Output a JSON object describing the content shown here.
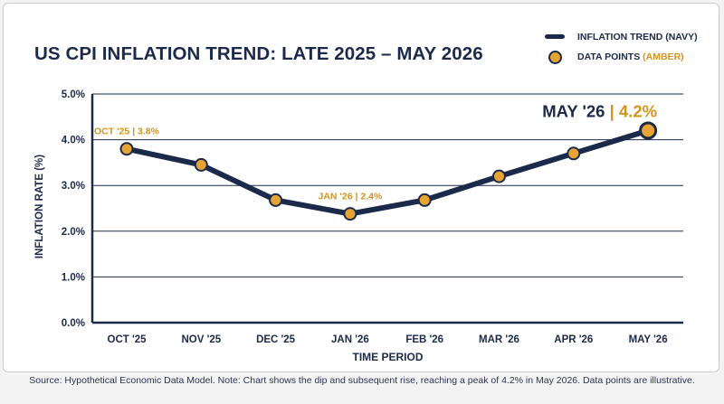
{
  "chart_data": {
    "type": "line",
    "title": "US CPI INFLATION TREND: LATE 2025 – MAY 2026",
    "xlabel": "TIME PERIOD",
    "ylabel": "INFLATION RATE (%)",
    "categories": [
      "OCT '25",
      "NOV '25",
      "DEC '25",
      "JAN '26",
      "FEB '26",
      "MAR '26",
      "APR '26",
      "MAY '26"
    ],
    "series": [
      {
        "name": "INFLATION TREND (NAVY)",
        "values": [
          3.8,
          3.45,
          2.68,
          2.38,
          2.68,
          3.2,
          3.7,
          4.2
        ]
      }
    ],
    "ylim": [
      0,
      5
    ],
    "yticks": [
      "0.0%",
      "1.0%",
      "2.0%",
      "3.0%",
      "4.0%",
      "5.0%"
    ],
    "grid": true,
    "legend": {
      "line_label": "INFLATION TREND (NAVY)",
      "points_label": "DATA POINTS",
      "points_suffix": "(AMBER)",
      "placement": "top-right"
    },
    "annotations": [
      {
        "index": 0,
        "text": "OCT '25 | 3.8%"
      },
      {
        "index": 3,
        "text": "JAN '26 | 2.4%"
      }
    ],
    "peak_annotation": {
      "index": 7,
      "label": "MAY '26",
      "separator": "|",
      "value": "4.2%"
    },
    "colors": {
      "line": "#1b2a4a",
      "points": "#e6a532",
      "accent": "#d4941f",
      "grid": "#1b2a4a"
    }
  },
  "footer": "Source: Hypothetical Economic Data Model. Note: Chart shows the dip and subsequent rise, reaching a peak of 4.2% in May 2026. Data points are illustrative."
}
